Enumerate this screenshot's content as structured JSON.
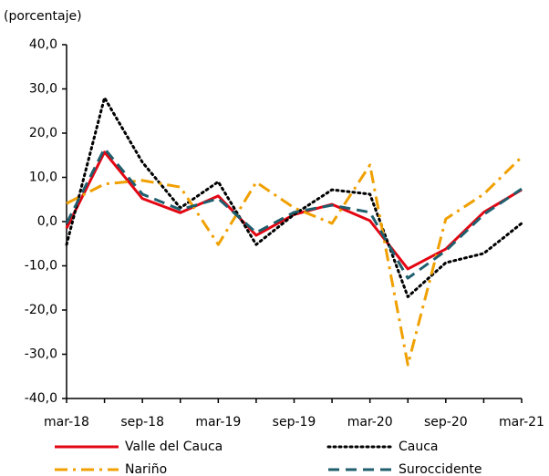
{
  "chart_data": {
    "type": "line",
    "ylabel": "(porcentaje)",
    "categories": [
      "mar-18",
      null,
      "sep-18",
      null,
      "mar-19",
      null,
      "sep-19",
      null,
      "mar-20",
      null,
      "sep-20",
      null,
      "mar-21"
    ],
    "ylim": [
      -40,
      40
    ],
    "yticks": [
      {
        "value": -40,
        "label": "-40,0"
      },
      {
        "value": -30,
        "label": "-30,0"
      },
      {
        "value": -20,
        "label": "-20,0"
      },
      {
        "value": -10,
        "label": "-10,0"
      },
      {
        "value": 0,
        "label": "0,0"
      },
      {
        "value": 10,
        "label": "10,0"
      },
      {
        "value": 20,
        "label": "20,0"
      },
      {
        "value": 30,
        "label": "30,0"
      },
      {
        "value": 40,
        "label": "40,0"
      }
    ],
    "legend": "bottom",
    "series": [
      {
        "name": "Valle del Cauca",
        "color": "#e30613",
        "dash": "solid",
        "values": [
          -1.5,
          15.7,
          5.2,
          2,
          5.8,
          -3.1,
          1.6,
          3.9,
          0.2,
          -10.7,
          -6.2,
          2.1,
          7.2
        ]
      },
      {
        "name": "Cauca",
        "color": "#000000",
        "dash": "dotted",
        "values": [
          -5.2,
          28,
          13.4,
          3.1,
          9,
          -5.2,
          1.6,
          7.2,
          6.2,
          -17,
          -9.3,
          -7.2,
          -0.4
        ]
      },
      {
        "name": "Nariño",
        "color": "#f0a000",
        "dash": "dashdot",
        "values": [
          4.1,
          8.5,
          9.3,
          7.8,
          -5.2,
          8.9,
          3.1,
          -0.4,
          12.8,
          -32.4,
          0.6,
          6.2,
          14.6
        ]
      },
      {
        "name": "Suroccidente",
        "color": "#1f5f6e",
        "dash": "dashed",
        "values": [
          -0.4,
          16.5,
          6.2,
          2.7,
          5.2,
          -2.5,
          2.1,
          3.7,
          2.1,
          -12.8,
          -6.6,
          1.6,
          7.4
        ]
      }
    ]
  }
}
